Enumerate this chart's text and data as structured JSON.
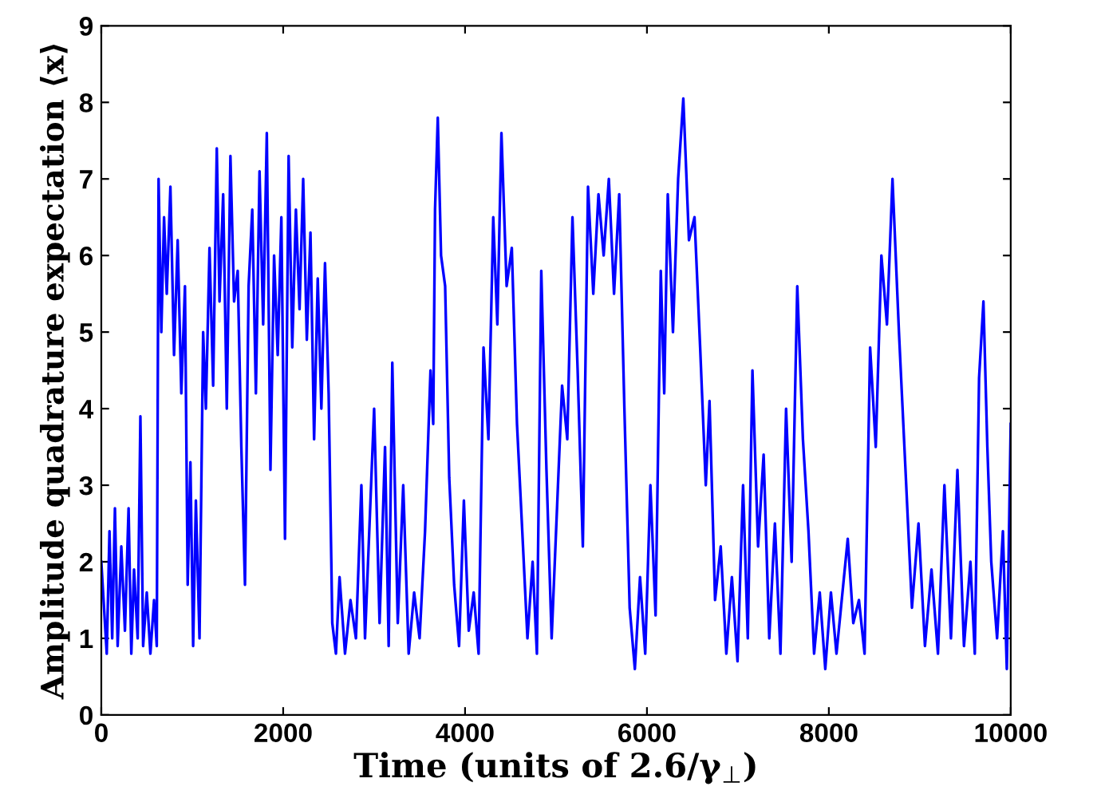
{
  "chart_data": {
    "type": "line",
    "xlabel": "Time (units of 2.6/γ$_{⊥}$)",
    "ylabel": "Amplitude quadrature expectation ⟨x⟩",
    "xlim": [
      0,
      10000
    ],
    "ylim": [
      0,
      9
    ],
    "xticks": [
      0,
      2000,
      4000,
      6000,
      8000,
      10000
    ],
    "yticks": [
      0,
      1,
      2,
      3,
      4,
      5,
      6,
      7,
      8,
      9
    ],
    "x": [
      0,
      60,
      90,
      120,
      150,
      180,
      220,
      260,
      300,
      330,
      360,
      400,
      430,
      460,
      500,
      540,
      580,
      610,
      630,
      660,
      690,
      720,
      760,
      800,
      840,
      880,
      920,
      950,
      980,
      1010,
      1040,
      1080,
      1120,
      1150,
      1190,
      1230,
      1270,
      1300,
      1340,
      1380,
      1420,
      1460,
      1500,
      1540,
      1580,
      1620,
      1660,
      1700,
      1740,
      1780,
      1820,
      1860,
      1900,
      1940,
      1980,
      2020,
      2060,
      2100,
      2140,
      2180,
      2220,
      2260,
      2300,
      2340,
      2380,
      2420,
      2460,
      2500,
      2540,
      2580,
      2620,
      2680,
      2740,
      2800,
      2860,
      2900,
      3000,
      3060,
      3120,
      3160,
      3200,
      3260,
      3320,
      3380,
      3440,
      3500,
      3560,
      3620,
      3650,
      3670,
      3700,
      3736,
      3781,
      3826,
      3880,
      3934,
      3987,
      4041,
      4095,
      4149,
      4203,
      4257,
      4310,
      4355,
      4400,
      4457,
      4514,
      4571,
      4629,
      4686,
      4743,
      4790,
      4838,
      4895,
      4952,
      5067,
      5124,
      5181,
      5238,
      5295,
      5352,
      5410,
      5467,
      5524,
      5581,
      5638,
      5695,
      5752,
      5810,
      5867,
      5924,
      5981,
      6038,
      6095,
      6152,
      6190,
      6229,
      6286,
      6343,
      6400,
      6462,
      6523,
      6585,
      6647,
      6688,
      6749,
      6811,
      6873,
      6934,
      6996,
      7057,
      7109,
      7160,
      7222,
      7283,
      7345,
      7407,
      7468,
      7530,
      7591,
      7653,
      7715,
      7776,
      7838,
      7900,
      7961,
      8023,
      8084,
      8208,
      8269,
      8331,
      8393,
      8454,
      8516,
      8578,
      8639,
      8700,
      8771,
      8843,
      8914,
      8986,
      9057,
      9129,
      9200,
      9271,
      9343,
      9414,
      9486,
      9557,
      9605,
      9652,
      9700,
      9743,
      9786,
      9850,
      9914,
      9957,
      10000
    ],
    "values": [
      2.0,
      0.8,
      2.4,
      1.0,
      2.7,
      0.9,
      2.2,
      1.1,
      2.7,
      0.8,
      1.9,
      1.0,
      3.9,
      0.9,
      1.6,
      0.8,
      1.5,
      0.9,
      7.0,
      5.0,
      6.5,
      5.5,
      6.9,
      4.7,
      6.2,
      4.2,
      5.6,
      1.7,
      3.3,
      0.9,
      2.8,
      1.0,
      5.0,
      4.0,
      6.1,
      4.3,
      7.4,
      5.4,
      6.8,
      4.0,
      7.3,
      5.4,
      5.8,
      3.5,
      1.7,
      5.6,
      6.6,
      4.2,
      7.1,
      5.1,
      7.6,
      3.2,
      6.0,
      4.7,
      6.5,
      2.3,
      7.3,
      4.8,
      6.6,
      5.3,
      7.0,
      4.9,
      6.3,
      3.6,
      5.7,
      4.0,
      5.9,
      4.2,
      1.2,
      0.8,
      1.8,
      0.8,
      1.5,
      1.0,
      3.0,
      1.0,
      4.0,
      1.2,
      3.5,
      0.9,
      4.6,
      1.2,
      3.0,
      0.8,
      1.6,
      1.0,
      2.4,
      4.5,
      3.8,
      6.6,
      7.8,
      6.0,
      5.6,
      3.1,
      1.7,
      0.9,
      2.8,
      1.1,
      1.6,
      0.8,
      4.8,
      3.6,
      6.5,
      5.1,
      7.6,
      5.6,
      6.1,
      3.8,
      2.4,
      1.0,
      2.0,
      0.8,
      5.8,
      3.2,
      1.0,
      4.3,
      3.6,
      6.5,
      4.5,
      2.2,
      6.9,
      5.5,
      6.8,
      6.0,
      7.0,
      5.5,
      6.8,
      4.0,
      1.4,
      0.6,
      1.8,
      0.8,
      3.0,
      1.3,
      5.8,
      4.2,
      6.8,
      5.0,
      7.0,
      8.05,
      6.2,
      6.5,
      4.8,
      3.0,
      4.1,
      1.5,
      2.2,
      0.8,
      1.8,
      0.7,
      3.0,
      1.0,
      4.5,
      2.2,
      3.4,
      1.0,
      2.5,
      0.8,
      4.0,
      2.0,
      5.6,
      3.6,
      2.4,
      0.8,
      1.6,
      0.6,
      1.6,
      0.8,
      2.3,
      1.2,
      1.5,
      0.8,
      4.8,
      3.5,
      6.0,
      5.1,
      7.0,
      5.0,
      3.2,
      1.4,
      2.5,
      0.9,
      1.9,
      0.8,
      3.0,
      1.0,
      3.2,
      0.9,
      2.0,
      0.8,
      4.4,
      5.4,
      3.5,
      2.0,
      1.0,
      2.4,
      0.6,
      3.8
    ]
  }
}
